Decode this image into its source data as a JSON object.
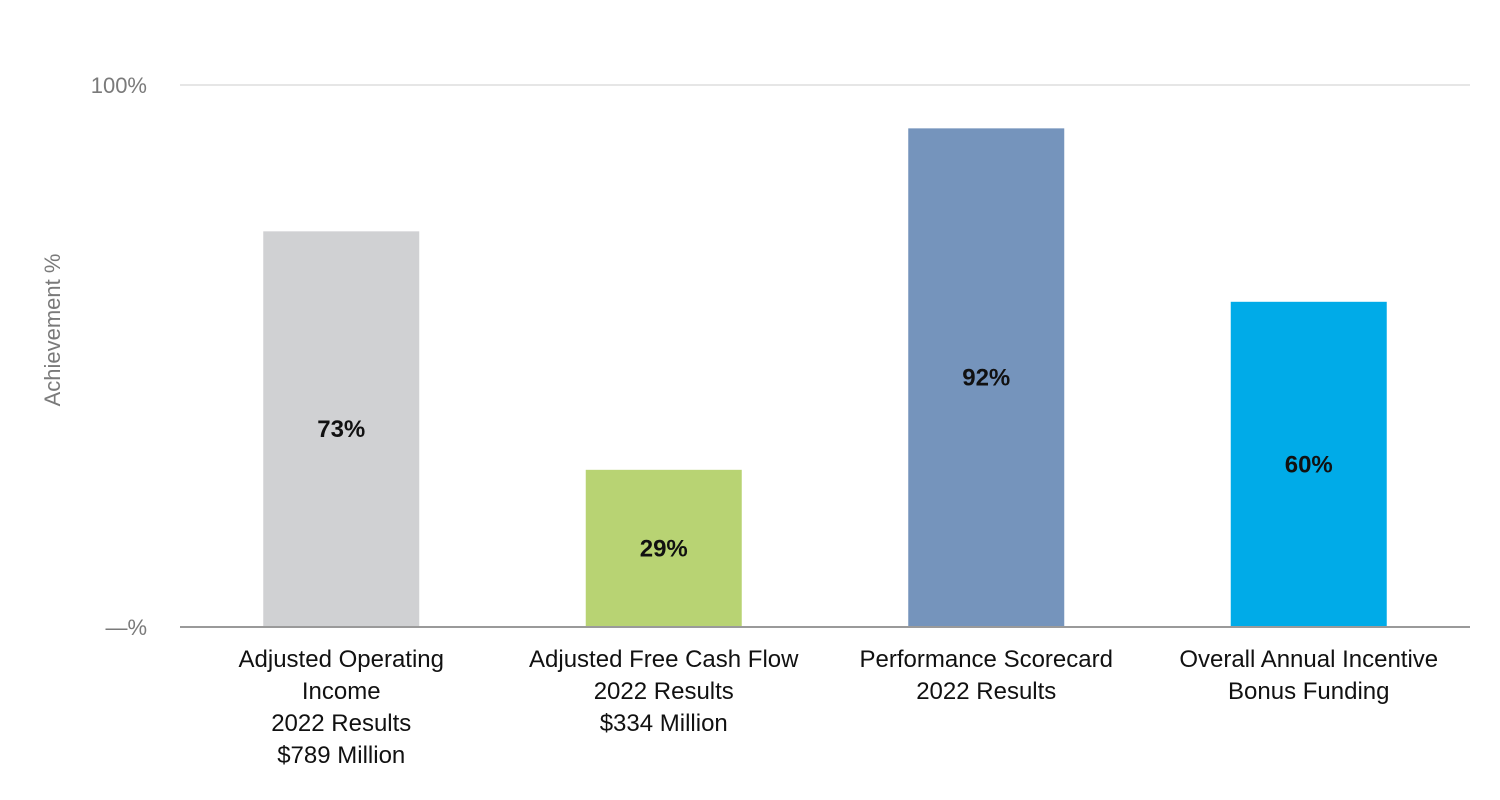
{
  "chart_data": {
    "type": "bar",
    "title": "",
    "xlabel": "",
    "ylabel": "Achievement %",
    "ylim": [
      0,
      100
    ],
    "y_tick_labels": [
      "—%",
      "100%"
    ],
    "y_tick_values": [
      0,
      100
    ],
    "grid": true,
    "categories": [
      [
        "Adjusted Operating",
        "Income",
        "2022 Results",
        "$789 Million"
      ],
      [
        "Adjusted Free Cash Flow",
        "2022 Results",
        "$334 Million"
      ],
      [
        "Performance Scorecard",
        "2022 Results"
      ],
      [
        "Overall Annual Incentive",
        "Bonus Funding"
      ]
    ],
    "values": [
      73,
      29,
      92,
      60
    ],
    "data_labels": [
      "73%",
      "29%",
      "92%",
      "60%"
    ],
    "colors": [
      "#d0d1d3",
      "#b8d373",
      "#7594bc",
      "#00abe8"
    ],
    "gridline_color": "#e6e6e6",
    "axis_color": "#9a9a9a"
  }
}
